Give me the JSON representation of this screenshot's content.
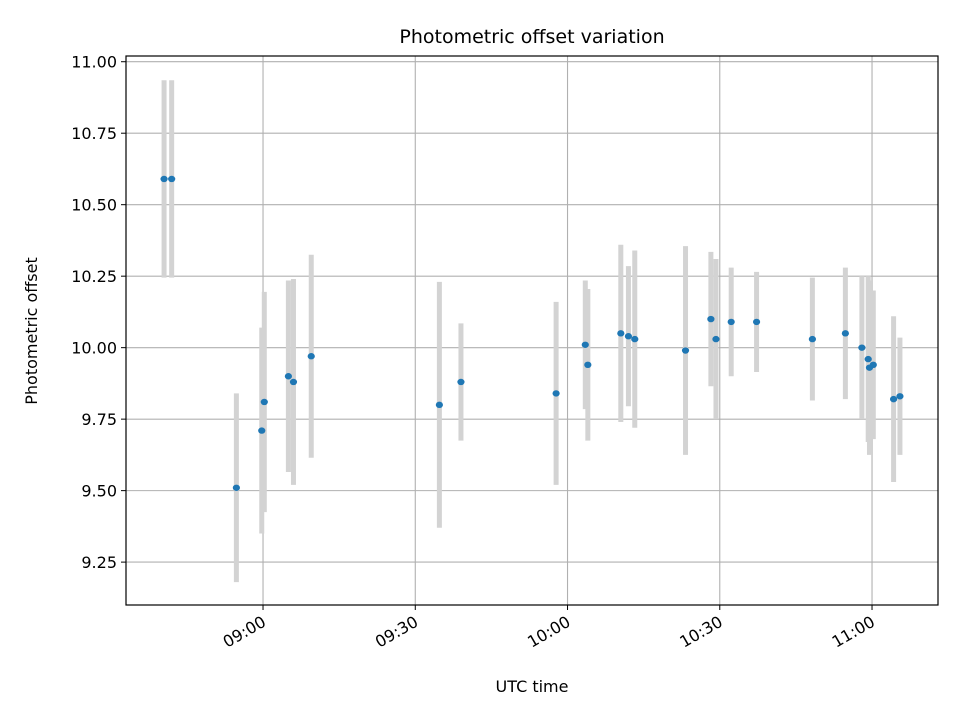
{
  "chart_data": {
    "type": "scatter",
    "title": "Photometric offset variation",
    "xlabel": "UTC time",
    "ylabel": "Photometric offset",
    "x_ticks": [
      "09:00",
      "09:30",
      "10:00",
      "10:30",
      "11:00"
    ],
    "y_ticks": [
      "9.25",
      "9.50",
      "9.75",
      "10.00",
      "10.25",
      "10.50",
      "10.75",
      "11.00"
    ],
    "xlim": [
      "08:33",
      "11:13"
    ],
    "ylim": [
      9.1,
      11.02
    ],
    "grid": true,
    "colors": {
      "point": "#1f77b4",
      "errorbar": "#d3d3d3",
      "grid": "#b0b0b0"
    },
    "points": [
      {
        "time": "08:40:30",
        "y": 10.59,
        "err": 0.345
      },
      {
        "time": "08:42:00",
        "y": 10.59,
        "err": 0.345
      },
      {
        "time": "08:54:45",
        "y": 9.51,
        "err": 0.33
      },
      {
        "time": "08:59:45",
        "y": 9.71,
        "err": 0.36
      },
      {
        "time": "09:00:15",
        "y": 9.81,
        "err": 0.385
      },
      {
        "time": "09:05:00",
        "y": 9.9,
        "err": 0.335
      },
      {
        "time": "09:06:00",
        "y": 9.88,
        "err": 0.36
      },
      {
        "time": "09:09:30",
        "y": 9.97,
        "err": 0.355
      },
      {
        "time": "09:34:45",
        "y": 9.8,
        "err": 0.43
      },
      {
        "time": "09:39:00",
        "y": 9.88,
        "err": 0.205
      },
      {
        "time": "09:57:45",
        "y": 9.84,
        "err": 0.32
      },
      {
        "time": "10:03:30",
        "y": 10.01,
        "err": 0.225
      },
      {
        "time": "10:04:00",
        "y": 9.94,
        "err": 0.265
      },
      {
        "time": "10:10:30",
        "y": 10.05,
        "err": 0.31
      },
      {
        "time": "10:12:00",
        "y": 10.04,
        "err": 0.245
      },
      {
        "time": "10:13:15",
        "y": 10.03,
        "err": 0.31
      },
      {
        "time": "10:23:15",
        "y": 9.99,
        "err": 0.365
      },
      {
        "time": "10:28:15",
        "y": 10.1,
        "err": 0.235
      },
      {
        "time": "10:29:15",
        "y": 10.03,
        "err": 0.28
      },
      {
        "time": "10:32:15",
        "y": 10.09,
        "err": 0.19
      },
      {
        "time": "10:37:15",
        "y": 10.09,
        "err": 0.175
      },
      {
        "time": "10:48:15",
        "y": 10.03,
        "err": 0.215
      },
      {
        "time": "10:54:45",
        "y": 10.05,
        "err": 0.23
      },
      {
        "time": "10:58:00",
        "y": 10.0,
        "err": 0.25
      },
      {
        "time": "10:59:15",
        "y": 9.96,
        "err": 0.29
      },
      {
        "time": "10:59:30",
        "y": 9.93,
        "err": 0.305
      },
      {
        "time": "11:00:15",
        "y": 9.94,
        "err": 0.26
      },
      {
        "time": "11:04:15",
        "y": 9.82,
        "err": 0.29
      },
      {
        "time": "11:05:30",
        "y": 9.83,
        "err": 0.205
      }
    ]
  }
}
